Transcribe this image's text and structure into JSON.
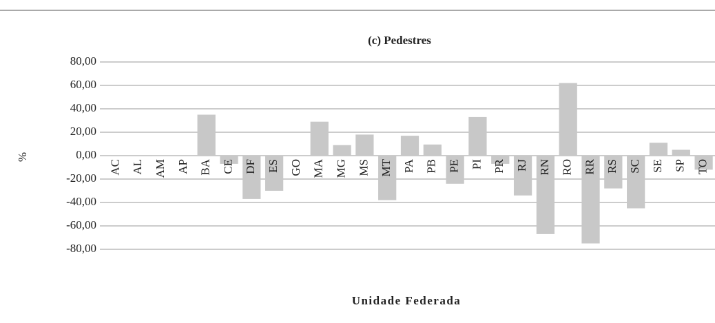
{
  "chart_data": {
    "type": "bar",
    "title": "(c) Pedestres",
    "y_label": "%",
    "x_label": "Unidade Federada",
    "categories": [
      "AC",
      "AL",
      "AM",
      "AP",
      "BA",
      "CE",
      "DF",
      "ES",
      "GO",
      "MA",
      "MG",
      "MS",
      "MT",
      "PA",
      "PB",
      "PE",
      "PI",
      "PR",
      "RJ",
      "RN",
      "RO",
      "RR",
      "RS",
      "SC",
      "SE",
      "SP",
      "TO"
    ],
    "values": [
      0,
      0,
      -0.5,
      0,
      35,
      -7,
      -37,
      -30,
      0,
      29,
      9,
      18,
      -38,
      17,
      9.5,
      -24,
      33,
      -7,
      -34,
      -67,
      62,
      -75,
      -28,
      -45,
      11,
      5,
      -12
    ],
    "color": "#c8c8c8",
    "ylim": [
      -80,
      80
    ],
    "yticks": [
      {
        "value": -80,
        "label": "-80,00"
      },
      {
        "value": -60,
        "label": "-60,00"
      },
      {
        "value": -40,
        "label": "-40,00"
      },
      {
        "value": -20,
        "label": "-20,00"
      },
      {
        "value": 0,
        "label": "0,00"
      },
      {
        "value": 20,
        "label": "20,00"
      },
      {
        "value": 40,
        "label": "40,00"
      },
      {
        "value": 60,
        "label": "60,00"
      },
      {
        "value": 80,
        "label": "80,00"
      }
    ],
    "grid": true
  }
}
